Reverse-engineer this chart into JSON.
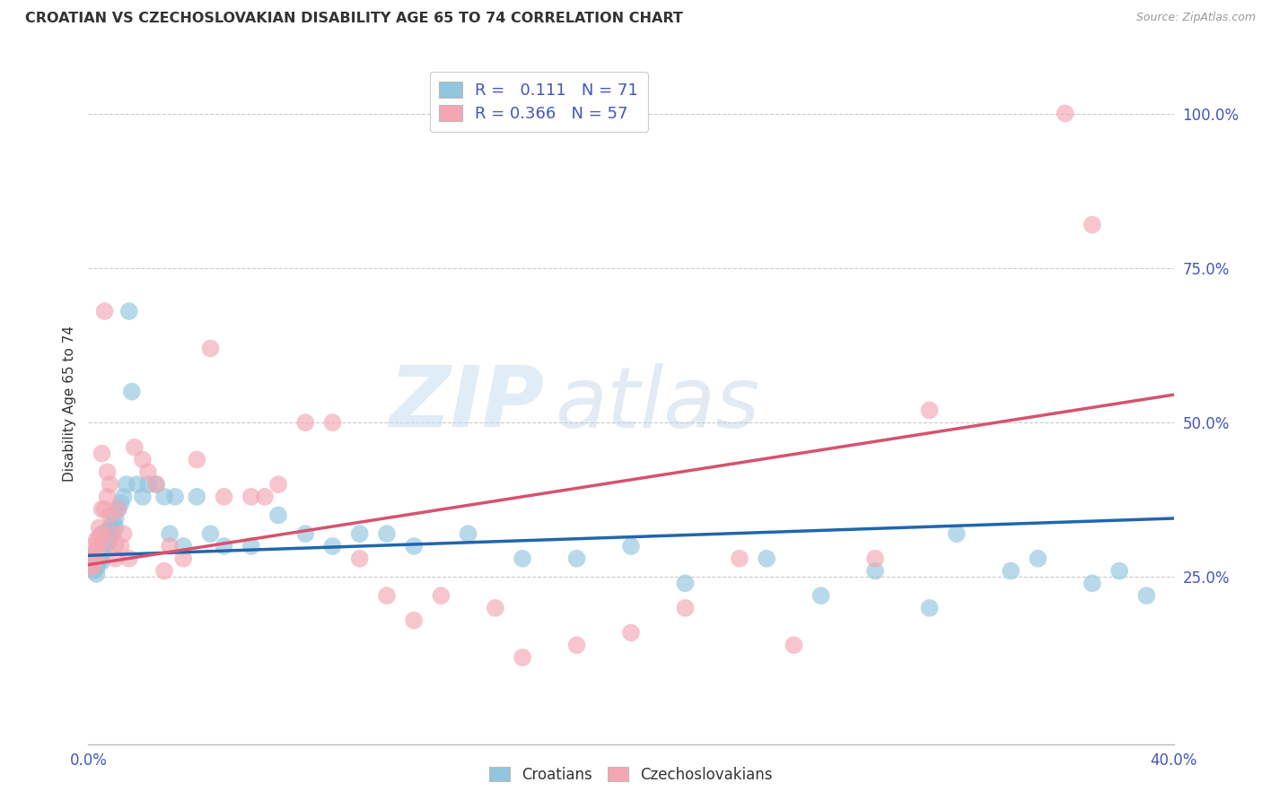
{
  "title": "CROATIAN VS CZECHOSLOVAKIAN DISABILITY AGE 65 TO 74 CORRELATION CHART",
  "source": "Source: ZipAtlas.com",
  "ylabel": "Disability Age 65 to 74",
  "y_ticks": [
    "25.0%",
    "50.0%",
    "75.0%",
    "100.0%"
  ],
  "y_tick_vals": [
    0.25,
    0.5,
    0.75,
    1.0
  ],
  "x_range": [
    0.0,
    0.4
  ],
  "y_range": [
    -0.02,
    1.08
  ],
  "croatian_color": "#92c5de",
  "czechoslovakian_color": "#f4a7b2",
  "croatian_line_color": "#2166ac",
  "czechoslovakian_line_color": "#d6536d",
  "watermark_zip": "ZIP",
  "watermark_atlas": "atlas",
  "legend_r_croatian": "0.111",
  "legend_n_croatian": "71",
  "legend_r_czechoslovakian": "0.366",
  "legend_n_czechoslovakian": "57",
  "croatian_scatter_x": [
    0.001,
    0.001,
    0.002,
    0.002,
    0.002,
    0.002,
    0.003,
    0.003,
    0.003,
    0.003,
    0.003,
    0.004,
    0.004,
    0.004,
    0.004,
    0.005,
    0.005,
    0.005,
    0.005,
    0.006,
    0.006,
    0.006,
    0.007,
    0.007,
    0.007,
    0.008,
    0.008,
    0.008,
    0.009,
    0.009,
    0.01,
    0.01,
    0.011,
    0.012,
    0.013,
    0.014,
    0.015,
    0.016,
    0.018,
    0.02,
    0.022,
    0.025,
    0.028,
    0.03,
    0.032,
    0.035,
    0.04,
    0.045,
    0.05,
    0.06,
    0.07,
    0.08,
    0.09,
    0.1,
    0.11,
    0.12,
    0.14,
    0.16,
    0.18,
    0.2,
    0.22,
    0.25,
    0.27,
    0.29,
    0.31,
    0.32,
    0.34,
    0.35,
    0.37,
    0.38,
    0.39
  ],
  "croatian_scatter_y": [
    0.285,
    0.275,
    0.28,
    0.27,
    0.265,
    0.26,
    0.29,
    0.285,
    0.275,
    0.265,
    0.255,
    0.3,
    0.295,
    0.285,
    0.275,
    0.305,
    0.295,
    0.285,
    0.275,
    0.32,
    0.31,
    0.3,
    0.325,
    0.315,
    0.305,
    0.33,
    0.32,
    0.31,
    0.34,
    0.32,
    0.345,
    0.33,
    0.36,
    0.37,
    0.38,
    0.4,
    0.68,
    0.55,
    0.4,
    0.38,
    0.4,
    0.4,
    0.38,
    0.32,
    0.38,
    0.3,
    0.38,
    0.32,
    0.3,
    0.3,
    0.35,
    0.32,
    0.3,
    0.32,
    0.32,
    0.3,
    0.32,
    0.28,
    0.28,
    0.3,
    0.24,
    0.28,
    0.22,
    0.26,
    0.2,
    0.32,
    0.26,
    0.28,
    0.24,
    0.26,
    0.22
  ],
  "czechoslovakian_scatter_x": [
    0.001,
    0.001,
    0.002,
    0.002,
    0.002,
    0.003,
    0.003,
    0.003,
    0.004,
    0.004,
    0.004,
    0.005,
    0.005,
    0.005,
    0.006,
    0.006,
    0.007,
    0.007,
    0.008,
    0.008,
    0.009,
    0.01,
    0.01,
    0.011,
    0.012,
    0.013,
    0.015,
    0.017,
    0.02,
    0.022,
    0.025,
    0.028,
    0.03,
    0.035,
    0.04,
    0.045,
    0.05,
    0.06,
    0.065,
    0.07,
    0.08,
    0.09,
    0.1,
    0.11,
    0.12,
    0.13,
    0.15,
    0.16,
    0.18,
    0.2,
    0.22,
    0.24,
    0.26,
    0.29,
    0.31,
    0.36,
    0.37
  ],
  "czechoslovakian_scatter_y": [
    0.28,
    0.265,
    0.3,
    0.285,
    0.27,
    0.31,
    0.295,
    0.28,
    0.33,
    0.315,
    0.3,
    0.45,
    0.36,
    0.32,
    0.68,
    0.36,
    0.42,
    0.38,
    0.4,
    0.35,
    0.32,
    0.3,
    0.28,
    0.36,
    0.3,
    0.32,
    0.28,
    0.46,
    0.44,
    0.42,
    0.4,
    0.26,
    0.3,
    0.28,
    0.44,
    0.62,
    0.38,
    0.38,
    0.38,
    0.4,
    0.5,
    0.5,
    0.28,
    0.22,
    0.18,
    0.22,
    0.2,
    0.12,
    0.14,
    0.16,
    0.2,
    0.28,
    0.14,
    0.28,
    0.52,
    1.0,
    0.82
  ],
  "croatian_trend_x": [
    0.0,
    0.4
  ],
  "croatian_trend_y": [
    0.285,
    0.345
  ],
  "czechoslovakian_trend_x": [
    0.0,
    0.4
  ],
  "czechoslovakian_trend_y": [
    0.27,
    0.545
  ],
  "background_color": "#ffffff",
  "grid_color": "#cccccc",
  "title_color": "#333333",
  "tick_label_color": "#4455bb"
}
